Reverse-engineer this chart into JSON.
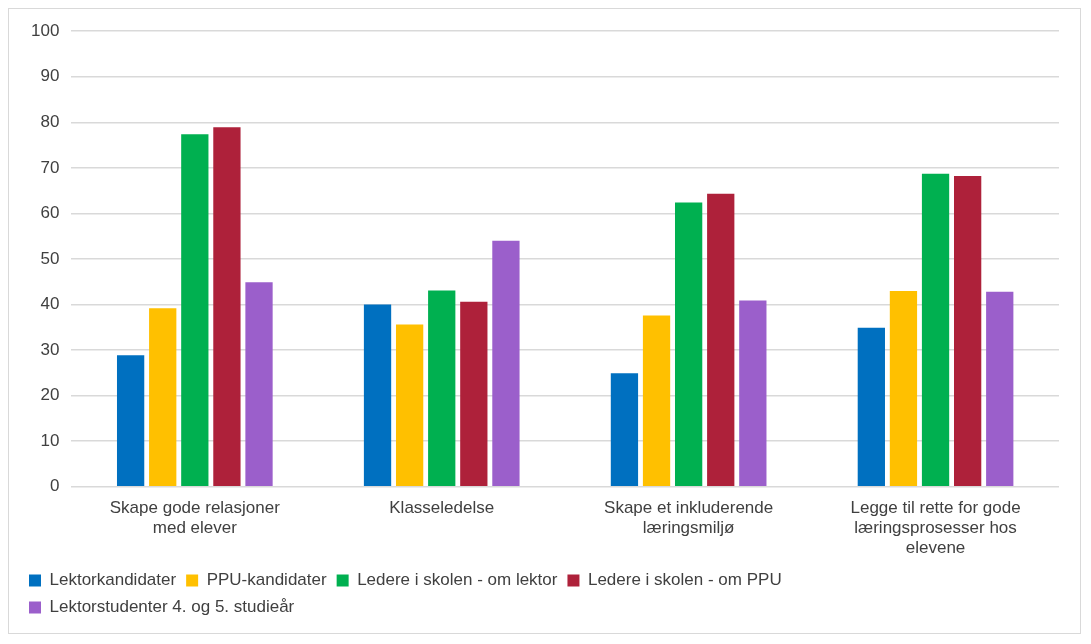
{
  "chart_data": {
    "type": "bar",
    "categories": [
      "Skape gode relasjoner med elever",
      "Klasseledelse",
      "Skape et inkluderende læringsmiljø",
      "Legge til rette for gode læringsprosesser hos elevene"
    ],
    "series": [
      {
        "name": "Lektorkandidater",
        "color": "#0070c0",
        "values": [
          28.9,
          40,
          24.9,
          34.9
        ]
      },
      {
        "name": "PPU-kandidater",
        "color": "#ffc000",
        "values": [
          39.2,
          35.6,
          37.6,
          43
        ]
      },
      {
        "name": "Ledere i skolen - om lektor",
        "color": "#00b050",
        "values": [
          77.4,
          43.1,
          62.4,
          68.7
        ]
      },
      {
        "name": "Ledere i skolen - om PPU",
        "color": "#ae213a",
        "values": [
          78.9,
          40.6,
          64.3,
          68.2
        ]
      },
      {
        "name": "Lektorstudenter 4. og 5. studieår",
        "color": "#9b5fcb",
        "values": [
          44.9,
          54,
          40.9,
          42.8
        ]
      }
    ],
    "ylim": [
      0,
      100
    ],
    "yticks": [
      0,
      10,
      20,
      30,
      40,
      50,
      60,
      70,
      80,
      90,
      100
    ],
    "grid": "y",
    "legend": "bottom"
  }
}
